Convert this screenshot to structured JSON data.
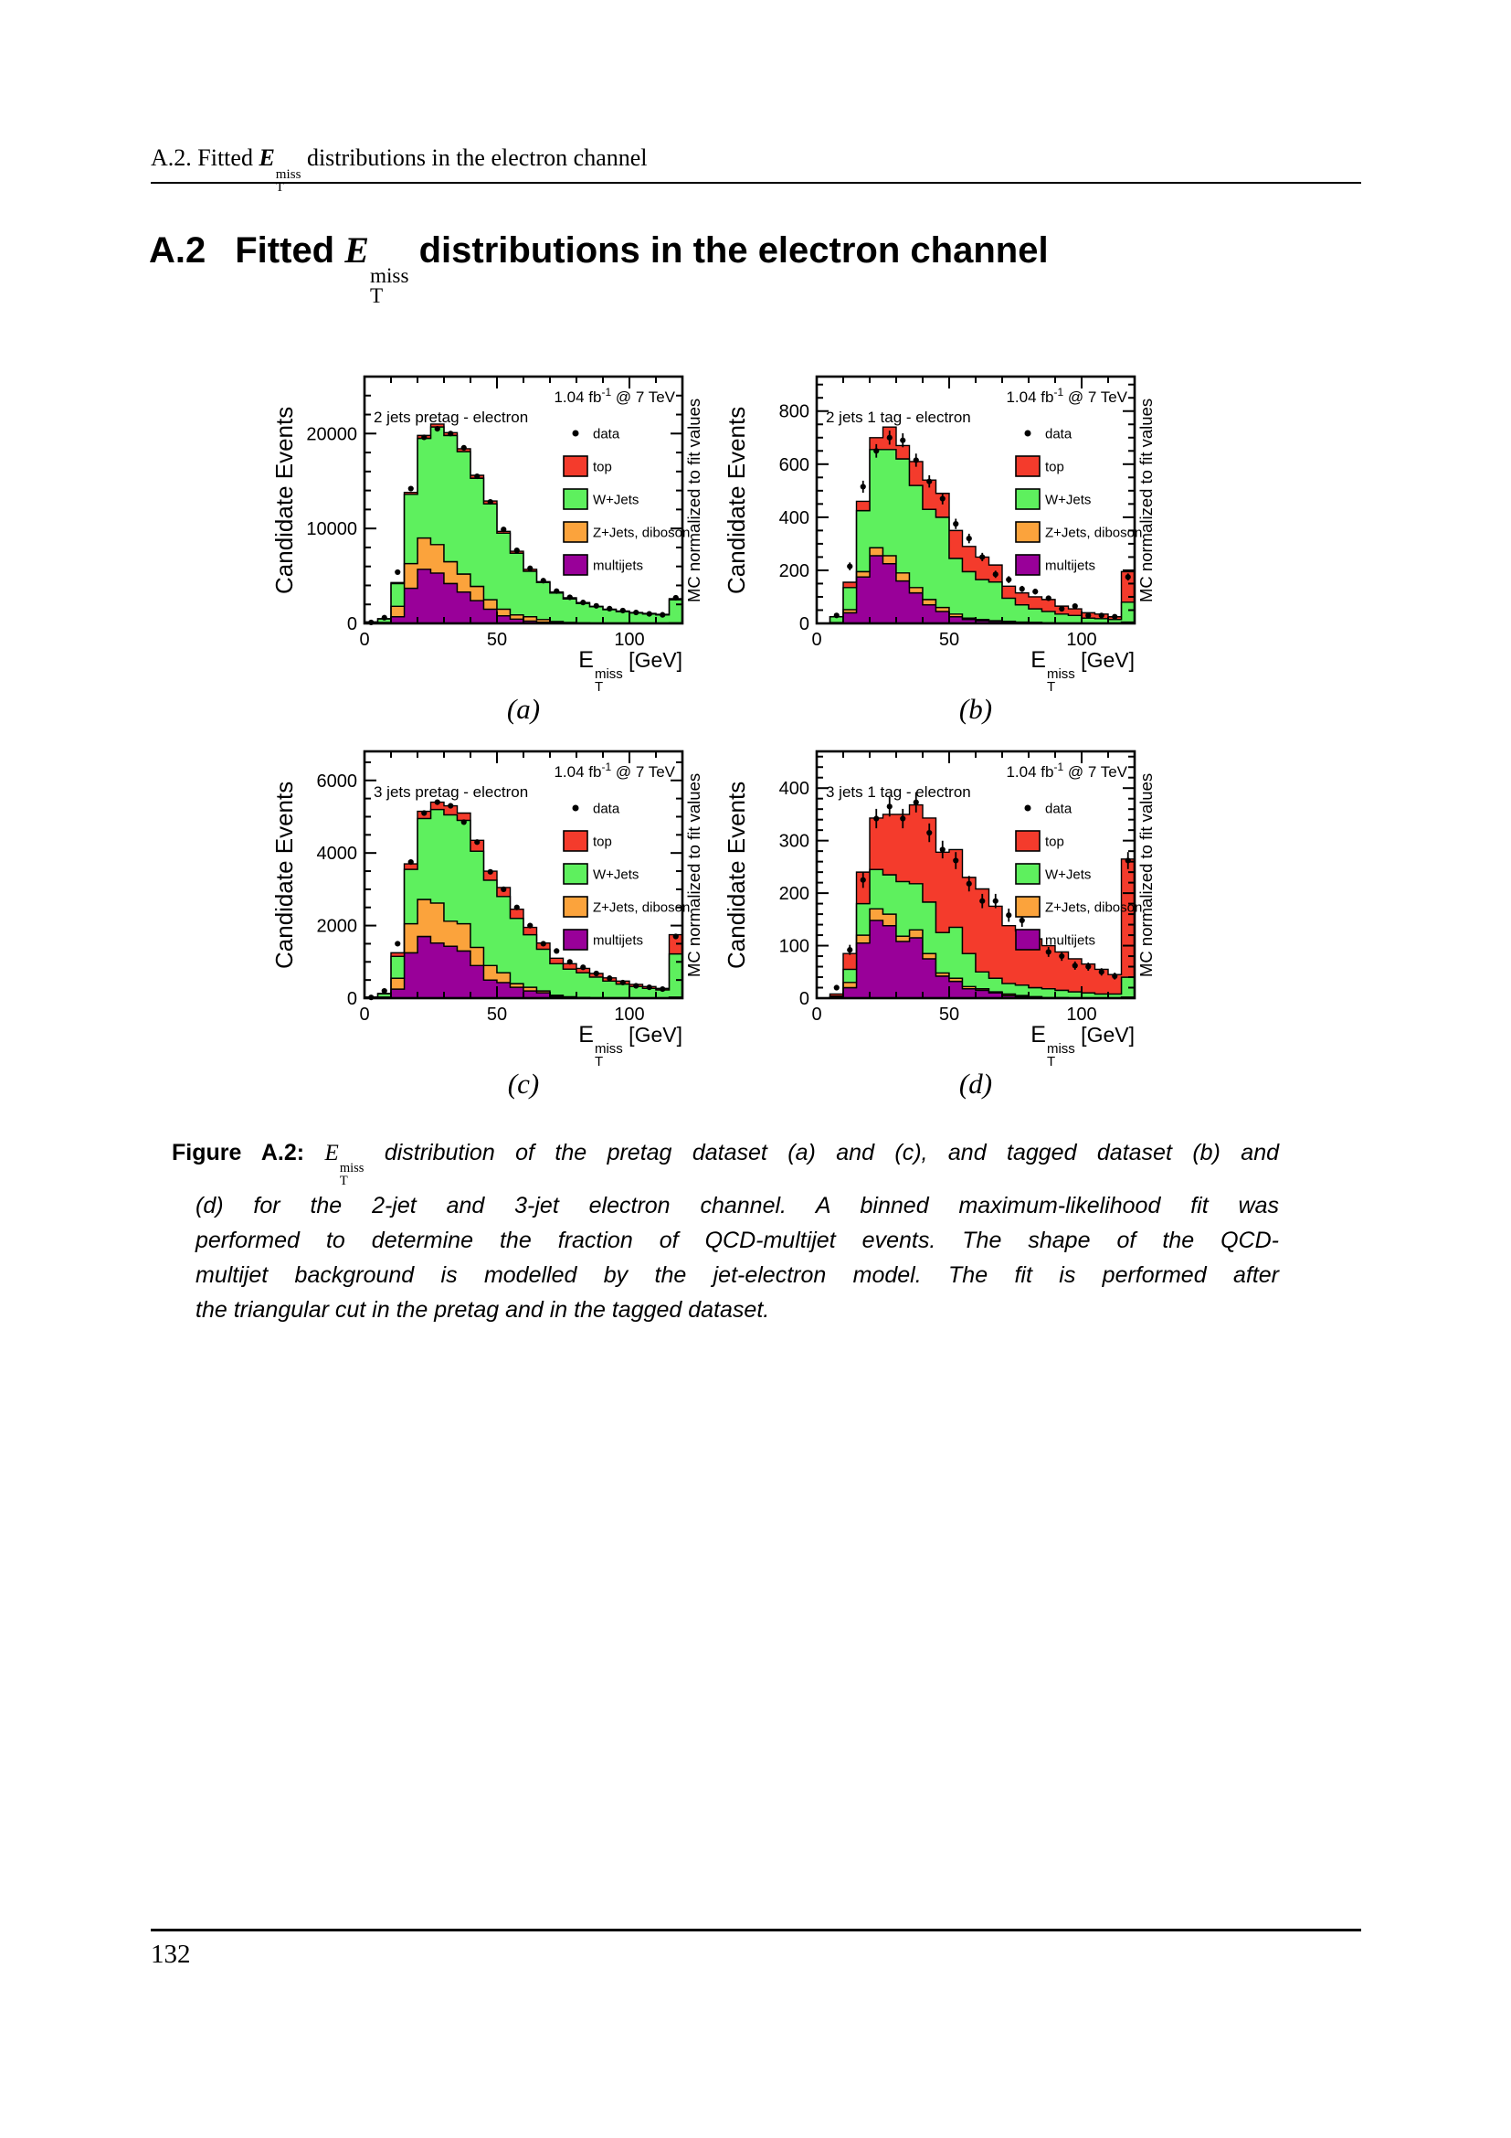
{
  "header": {
    "prefix": "A.2. Fitted",
    "math": {
      "base": "E",
      "sup": "miss",
      "sub": "T"
    },
    "suffix": "distributions in the electron channel"
  },
  "section": {
    "number": "A.2",
    "prefix": "Fitted",
    "math": {
      "base": "E",
      "sup": "miss",
      "sub": "T"
    },
    "suffix": "distributions in the electron channel"
  },
  "caption": {
    "label": "Figure A.2:",
    "math": {
      "base": "E",
      "sup": "miss",
      "sub": "T"
    },
    "lines": [
      "distribution of the pretag dataset (a) and (c), and tagged dataset (b) and",
      "(d) for the 2-jet and 3-jet electron channel.  A binned maximum-likelihood fit was",
      "performed to determine the fraction of QCD-multijet events.  The shape of the QCD-",
      "multijet background is modelled by the jet-electron model.  The fit is performed after",
      "the triangular cut in the pretag and in the tagged dataset."
    ]
  },
  "page": {
    "number": "132"
  },
  "colors": {
    "top": "#f43b2c",
    "wjets": "#5ef05e",
    "zjets": "#fba33c",
    "multijets": "#990099",
    "data": "#000000"
  },
  "chart_data": [
    {
      "id": "a",
      "type": "bar",
      "title": "2 jets pretag - electron",
      "corner": {
        "pre": "1.04 fb",
        "sup": "-1",
        "post": " @ 7 TeV"
      },
      "ylabel": "Candidate Events",
      "right_label": "MC normalized to fit values",
      "xlabel": {
        "base": "E",
        "sup": "miss",
        "sub": "T",
        "unit": " [GeV]"
      },
      "sublabel": "(a)",
      "xlim": [
        0,
        120
      ],
      "bin_width": 5,
      "xticks": [
        0,
        50,
        100
      ],
      "x_minor_step": 10,
      "ylim": [
        0,
        26000
      ],
      "yticks": [
        0,
        10000,
        20000
      ],
      "y_minor_step": 2000,
      "legend": [
        {
          "label": "data",
          "type": "marker"
        },
        {
          "label": "top",
          "type": "box",
          "color": "#f43b2c"
        },
        {
          "label": "W+Jets",
          "type": "box",
          "color": "#5ef05e"
        },
        {
          "label": "Z+Jets, diboson",
          "type": "box",
          "color": "#fba33c"
        },
        {
          "label": "multijets",
          "type": "box",
          "color": "#990099"
        }
      ],
      "series": [
        {
          "name": "multijets",
          "color": "#990099",
          "values": [
            0,
            0,
            700,
            3700,
            5700,
            5300,
            4200,
            3300,
            2400,
            1500,
            800,
            450,
            250,
            120,
            60,
            0,
            0,
            0,
            0,
            0,
            0,
            0,
            0,
            0
          ]
        },
        {
          "name": "Z+Jets, diboson",
          "color": "#fba33c",
          "values": [
            0,
            100,
            1100,
            2600,
            3300,
            3000,
            2300,
            1900,
            1500,
            1000,
            700,
            450,
            450,
            280,
            140,
            100,
            50,
            30,
            20,
            10,
            10,
            10,
            10,
            50
          ]
        },
        {
          "name": "W+Jets",
          "color": "#5ef05e",
          "values": [
            150,
            380,
            2400,
            7300,
            10500,
            12400,
            13300,
            12900,
            11400,
            10100,
            8000,
            6500,
            4800,
            3900,
            3000,
            2470,
            2050,
            1720,
            1430,
            1240,
            1090,
            990,
            890,
            2450
          ]
        },
        {
          "name": "top",
          "color": "#f43b2c",
          "values": [
            0,
            20,
            100,
            200,
            300,
            300,
            300,
            300,
            300,
            300,
            200,
            200,
            200,
            100,
            100,
            130,
            100,
            50,
            50,
            50,
            50,
            50,
            50,
            100
          ]
        }
      ],
      "data_points": [
        100,
        600,
        5400,
        14200,
        19600,
        20500,
        20000,
        18500,
        15500,
        12800,
        9900,
        7700,
        5800,
        4500,
        3400,
        2750,
        2200,
        1850,
        1550,
        1350,
        1150,
        1000,
        900,
        2700
      ]
    },
    {
      "id": "b",
      "type": "bar",
      "title": "2 jets 1 tag - electron",
      "corner": {
        "pre": "1.04 fb",
        "sup": "-1",
        "post": " @ 7 TeV"
      },
      "ylabel": "Candidate Events",
      "right_label": "MC normalized to fit values",
      "xlabel": {
        "base": "E",
        "sup": "miss",
        "sub": "T",
        "unit": " [GeV]"
      },
      "sublabel": "(b)",
      "xlim": [
        0,
        120
      ],
      "bin_width": 5,
      "xticks": [
        0,
        50,
        100
      ],
      "x_minor_step": 10,
      "ylim": [
        0,
        930
      ],
      "yticks": [
        0,
        200,
        400,
        600,
        800
      ],
      "y_minor_step": 50,
      "legend": [
        {
          "label": "data",
          "type": "marker"
        },
        {
          "label": "top",
          "type": "box",
          "color": "#f43b2c"
        },
        {
          "label": "W+Jets",
          "type": "box",
          "color": "#5ef05e"
        },
        {
          "label": "Z+Jets, diboson",
          "type": "box",
          "color": "#fba33c"
        },
        {
          "label": "multijets",
          "type": "box",
          "color": "#990099"
        }
      ],
      "series": [
        {
          "name": "multijets",
          "color": "#990099",
          "values": [
            0,
            0,
            40,
            175,
            255,
            225,
            160,
            115,
            70,
            45,
            25,
            15,
            10,
            8,
            5,
            3,
            2,
            0,
            0,
            0,
            0,
            0,
            0,
            0
          ]
        },
        {
          "name": "Z+Jets, diboson",
          "color": "#fba33c",
          "values": [
            0,
            3,
            12,
            20,
            30,
            30,
            30,
            20,
            20,
            15,
            10,
            5,
            5,
            2,
            3,
            2,
            2,
            2,
            0,
            0,
            0,
            0,
            0,
            5
          ]
        },
        {
          "name": "W+Jets",
          "color": "#5ef05e",
          "values": [
            0,
            22,
            83,
            230,
            370,
            400,
            430,
            385,
            340,
            340,
            210,
            175,
            150,
            146,
            87,
            65,
            51,
            43,
            35,
            30,
            20,
            18,
            15,
            75
          ]
        },
        {
          "name": "top",
          "color": "#f43b2c",
          "values": [
            0,
            0,
            20,
            35,
            45,
            85,
            50,
            90,
            110,
            90,
            105,
            95,
            85,
            64,
            45,
            45,
            45,
            45,
            30,
            25,
            20,
            17,
            10,
            115
          ]
        }
      ],
      "data_points": [
        0,
        30,
        215,
        515,
        650,
        700,
        690,
        615,
        535,
        470,
        375,
        320,
        250,
        185,
        165,
        130,
        120,
        95,
        55,
        65,
        30,
        30,
        25,
        175
      ]
    },
    {
      "id": "c",
      "type": "bar",
      "title": "3 jets pretag - electron",
      "corner": {
        "pre": "1.04 fb",
        "sup": "-1",
        "post": " @ 7 TeV"
      },
      "ylabel": "Candidate Events",
      "right_label": "MC normalized to fit values",
      "xlabel": {
        "base": "E",
        "sup": "miss",
        "sub": "T",
        "unit": " [GeV]"
      },
      "sublabel": "(c)",
      "xlim": [
        0,
        120
      ],
      "bin_width": 5,
      "xticks": [
        0,
        50,
        100
      ],
      "x_minor_step": 10,
      "ylim": [
        0,
        6800
      ],
      "yticks": [
        0,
        2000,
        4000,
        6000
      ],
      "y_minor_step": 500,
      "legend": [
        {
          "label": "data",
          "type": "marker"
        },
        {
          "label": "top",
          "type": "box",
          "color": "#f43b2c"
        },
        {
          "label": "W+Jets",
          "type": "box",
          "color": "#5ef05e"
        },
        {
          "label": "Z+Jets, diboson",
          "type": "box",
          "color": "#fba33c"
        },
        {
          "label": "multijets",
          "type": "box",
          "color": "#990099"
        }
      ],
      "series": [
        {
          "name": "multijets",
          "color": "#990099",
          "values": [
            0,
            0,
            250,
            1250,
            1700,
            1520,
            1430,
            1300,
            900,
            500,
            430,
            300,
            200,
            150,
            50,
            20,
            0,
            0,
            0,
            0,
            0,
            0,
            0,
            0
          ]
        },
        {
          "name": "Z+Jets, diboson",
          "color": "#fba33c",
          "values": [
            0,
            30,
            300,
            800,
            1020,
            1100,
            690,
            750,
            500,
            400,
            270,
            100,
            100,
            50,
            30,
            20,
            20,
            10,
            10,
            10,
            0,
            0,
            0,
            30
          ]
        },
        {
          "name": "W+Jets",
          "color": "#5ef05e",
          "values": [
            30,
            90,
            600,
            1500,
            2230,
            2580,
            2930,
            2850,
            2650,
            2350,
            2100,
            1800,
            1450,
            1150,
            870,
            760,
            680,
            570,
            460,
            380,
            320,
            270,
            230,
            1190
          ]
        },
        {
          "name": "top",
          "color": "#f43b2c",
          "values": [
            0,
            10,
            100,
            150,
            200,
            200,
            250,
            200,
            300,
            250,
            250,
            250,
            200,
            170,
            150,
            150,
            120,
            100,
            90,
            80,
            60,
            50,
            40,
            530
          ]
        }
      ],
      "data_points": [
        20,
        200,
        1500,
        3750,
        5100,
        5400,
        5300,
        4850,
        4300,
        3480,
        3000,
        2500,
        2000,
        1500,
        1300,
        1000,
        850,
        680,
        550,
        430,
        340,
        300,
        250,
        1700
      ]
    },
    {
      "id": "d",
      "type": "bar",
      "title": "3 jets 1 tag - electron",
      "corner": {
        "pre": "1.04 fb",
        "sup": "-1",
        "post": " @ 7 TeV"
      },
      "ylabel": "Candidate Events",
      "right_label": "MC normalized to fit values",
      "xlabel": {
        "base": "E",
        "sup": "miss",
        "sub": "T",
        "unit": " [GeV]"
      },
      "sublabel": "(d)",
      "xlim": [
        0,
        120
      ],
      "bin_width": 5,
      "xticks": [
        0,
        50,
        100
      ],
      "x_minor_step": 10,
      "ylim": [
        0,
        470
      ],
      "yticks": [
        0,
        100,
        200,
        300,
        400
      ],
      "y_minor_step": 20,
      "legend": [
        {
          "label": "data",
          "type": "marker"
        },
        {
          "label": "top",
          "type": "box",
          "color": "#f43b2c"
        },
        {
          "label": "W+Jets",
          "type": "box",
          "color": "#5ef05e"
        },
        {
          "label": "Z+Jets, diboson",
          "type": "box",
          "color": "#fba33c"
        },
        {
          "label": "multijets",
          "type": "box",
          "color": "#990099"
        }
      ],
      "series": [
        {
          "name": "multijets",
          "color": "#990099",
          "values": [
            0,
            0,
            20,
            105,
            148,
            138,
            108,
            115,
            75,
            42,
            32,
            18,
            15,
            10,
            5,
            3,
            2,
            0,
            0,
            0,
            0,
            0,
            0,
            0
          ]
        },
        {
          "name": "Z+Jets, diboson",
          "color": "#fba33c",
          "values": [
            0,
            2,
            10,
            15,
            22,
            22,
            10,
            15,
            10,
            6,
            6,
            4,
            3,
            2,
            3,
            2,
            1,
            1,
            1,
            0,
            0,
            0,
            0,
            2
          ]
        },
        {
          "name": "W+Jets",
          "color": "#5ef05e",
          "values": [
            0,
            2,
            25,
            60,
            75,
            75,
            104,
            88,
            98,
            77,
            97,
            63,
            32,
            26,
            20,
            20,
            17,
            17,
            14,
            12,
            10,
            8,
            8,
            38
          ]
        },
        {
          "name": "top",
          "color": "#f43b2c",
          "values": [
            0,
            4,
            30,
            60,
            98,
            115,
            128,
            150,
            160,
            153,
            148,
            145,
            158,
            137,
            110,
            103,
            93,
            82,
            73,
            63,
            55,
            47,
            37,
            225
          ]
        }
      ],
      "data_points": [
        0,
        20,
        92,
        225,
        342,
        365,
        342,
        373,
        315,
        283,
        262,
        218,
        185,
        185,
        158,
        148,
        103,
        88,
        80,
        62,
        60,
        50,
        42,
        262
      ]
    }
  ]
}
